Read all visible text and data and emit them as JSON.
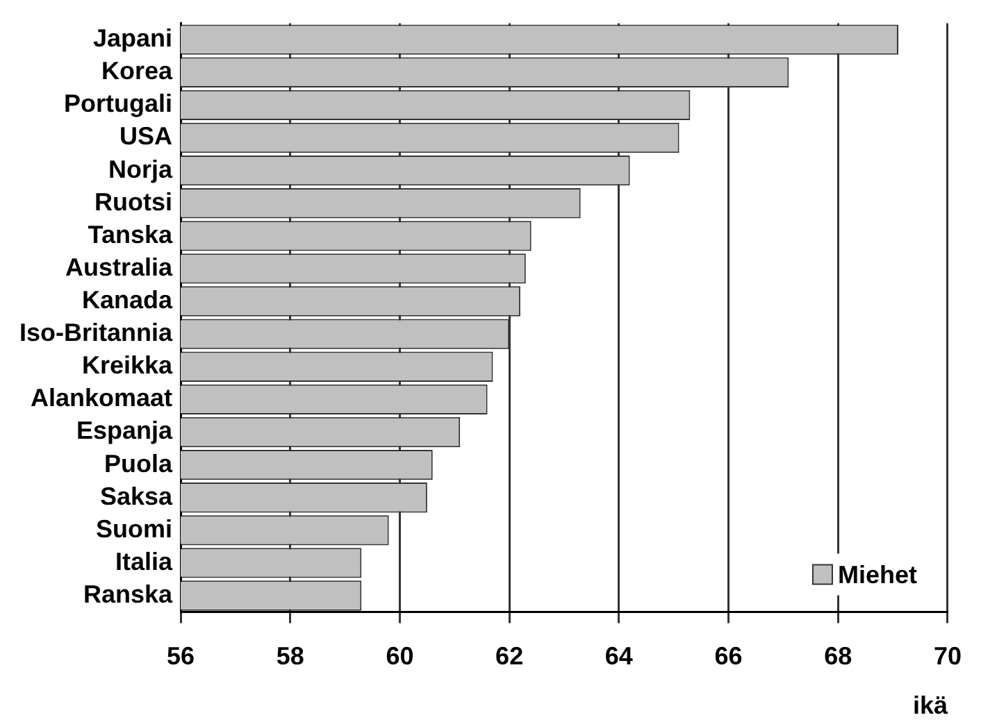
{
  "chart_data": {
    "type": "bar",
    "orientation": "horizontal",
    "xlabel": "ikä",
    "categories": [
      "Japani",
      "Korea",
      "Portugali",
      "USA",
      "Norja",
      "Ruotsi",
      "Tanska",
      "Australia",
      "Kanada",
      "Iso-Britannia",
      "Kreikka",
      "Alankomaat",
      "Espanja",
      "Puola",
      "Saksa",
      "Suomi",
      "Italia",
      "Ranska"
    ],
    "series": [
      {
        "name": "Miehet",
        "color": "#c0c0c0",
        "values": [
          69.1,
          67.1,
          65.3,
          65.1,
          64.2,
          63.3,
          62.4,
          62.3,
          62.2,
          62.0,
          61.7,
          61.6,
          61.1,
          60.6,
          60.5,
          59.8,
          59.3,
          59.3
        ]
      }
    ],
    "xlim": [
      56,
      70
    ],
    "xticks": [
      56,
      58,
      60,
      62,
      64,
      66,
      68,
      70
    ],
    "grid": "x",
    "legend": "bottom right"
  }
}
